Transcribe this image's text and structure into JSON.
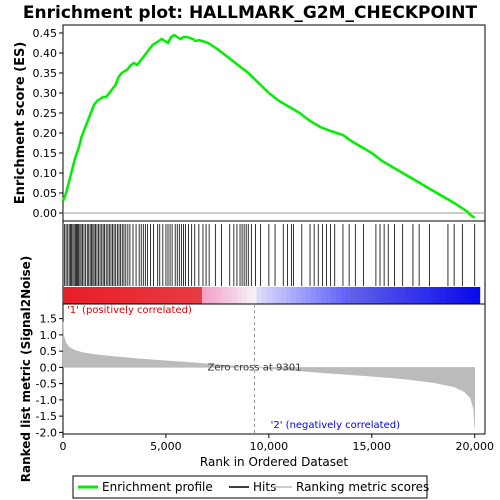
{
  "chart_data": {
    "type": "line",
    "title": "Enrichment plot: HALLMARK_G2M_CHECKPOINT",
    "xlabel": "Rank in Ordered Dataset",
    "xlim": [
      0,
      20500
    ],
    "x_ticks": [
      "0",
      "5,000",
      "10,000",
      "15,000",
      "20,000"
    ],
    "x_tick_values": [
      0,
      5000,
      10000,
      15000,
      20000
    ],
    "es_panel": {
      "ylabel": "Enrichment score (ES)",
      "ylim": [
        -0.02,
        0.47
      ],
      "y_ticks": [
        "0.00",
        "0.05",
        "0.10",
        "0.15",
        "0.20",
        "0.25",
        "0.30",
        "0.35",
        "0.40",
        "0.45"
      ],
      "y_tick_values": [
        0,
        0.05,
        0.1,
        0.15,
        0.2,
        0.25,
        0.3,
        0.35,
        0.4,
        0.45
      ],
      "color": "#00ee00",
      "series_x": [
        0,
        150,
        300,
        450,
        600,
        750,
        900,
        1050,
        1200,
        1350,
        1500,
        1650,
        1800,
        1950,
        2100,
        2250,
        2400,
        2550,
        2700,
        2850,
        3000,
        3150,
        3300,
        3450,
        3600,
        3750,
        3900,
        4050,
        4200,
        4350,
        4500,
        4650,
        4800,
        4950,
        5100,
        5250,
        5400,
        5550,
        5700,
        5850,
        6000,
        6150,
        6300,
        6450,
        6600,
        6750,
        6900,
        7050,
        7200,
        7500,
        8000,
        8500,
        9000,
        9500,
        10000,
        10500,
        11000,
        11500,
        12000,
        12500,
        13000,
        13300,
        13600,
        14000,
        14500,
        15000,
        15500,
        16000,
        16500,
        17000,
        17500,
        18000,
        18500,
        19000,
        19300,
        19600,
        19800,
        20000
      ],
      "series_y": [
        0.03,
        0.05,
        0.08,
        0.11,
        0.14,
        0.16,
        0.19,
        0.21,
        0.23,
        0.25,
        0.27,
        0.28,
        0.285,
        0.29,
        0.29,
        0.3,
        0.31,
        0.32,
        0.34,
        0.35,
        0.355,
        0.36,
        0.37,
        0.375,
        0.37,
        0.38,
        0.39,
        0.4,
        0.41,
        0.42,
        0.425,
        0.43,
        0.435,
        0.43,
        0.425,
        0.44,
        0.445,
        0.44,
        0.435,
        0.44,
        0.44,
        0.438,
        0.435,
        0.43,
        0.432,
        0.43,
        0.428,
        0.425,
        0.42,
        0.41,
        0.39,
        0.37,
        0.35,
        0.325,
        0.3,
        0.28,
        0.265,
        0.25,
        0.23,
        0.215,
        0.205,
        0.2,
        0.195,
        0.18,
        0.165,
        0.15,
        0.13,
        0.115,
        0.1,
        0.085,
        0.07,
        0.055,
        0.04,
        0.025,
        0.015,
        0.005,
        -0.005,
        -0.012
      ]
    },
    "hits": [
      80,
      150,
      230,
      300,
      360,
      420,
      480,
      540,
      600,
      650,
      700,
      760,
      820,
      880,
      950,
      1020,
      1100,
      1180,
      1250,
      1320,
      1390,
      1450,
      1510,
      1580,
      1650,
      1720,
      1800,
      1880,
      1950,
      2020,
      2100,
      2180,
      2250,
      2330,
      2400,
      2480,
      2560,
      2640,
      2720,
      2800,
      2880,
      2960,
      3050,
      3150,
      3250,
      3400,
      3550,
      3700,
      3800,
      3900,
      4000,
      4100,
      4250,
      4400,
      4600,
      4700,
      4850,
      5000,
      5100,
      5200,
      5300,
      5450,
      5550,
      5650,
      5750,
      5850,
      5950,
      6100,
      6250,
      6400,
      6600,
      6800,
      6950,
      7100,
      7400,
      7700,
      8100,
      8300,
      8450,
      8600,
      8700,
      8800,
      8900,
      9000,
      9150,
      9350,
      9600,
      10000,
      10300,
      10700,
      10900,
      11100,
      11200,
      11600,
      12000,
      12200,
      12400,
      12600,
      12800,
      13000,
      13200,
      13600,
      13900,
      14200,
      14600,
      15200,
      15400,
      15600,
      15800,
      16100,
      16500,
      17000,
      17300,
      17800,
      18700,
      19000,
      19400,
      20000
    ],
    "ranked_metric": {
      "ylabel": "Ranked list metric (Signal2Noise)",
      "ylim": [
        -2.05,
        1.95
      ],
      "y_ticks": [
        "-2.0",
        "-1.5",
        "-1.0",
        "-0.5",
        "0.0",
        "0.5",
        "1.0",
        "1.5"
      ],
      "y_tick_values": [
        -2,
        -1.5,
        -1,
        -0.5,
        0,
        0.5,
        1,
        1.5
      ],
      "profile_x": [
        0,
        50,
        150,
        300,
        600,
        1000,
        1500,
        2500,
        4000,
        6000,
        8000,
        9301,
        10500,
        12500,
        14500,
        16500,
        18000,
        19000,
        19500,
        19800,
        19950,
        20000
      ],
      "profile_y": [
        1.4,
        0.95,
        0.75,
        0.62,
        0.52,
        0.45,
        0.4,
        0.33,
        0.25,
        0.16,
        0.06,
        0.0,
        -0.06,
        -0.16,
        -0.25,
        -0.35,
        -0.47,
        -0.6,
        -0.75,
        -0.95,
        -1.3,
        -1.85
      ],
      "zero_cross_label": "Zero cross at 9301",
      "zero_cross": 9301,
      "pos_label": "'1' (positively correlated)",
      "neg_label": "'2' (negatively correlated)",
      "pos_color": "#dd0000",
      "neg_color": "#0000dd"
    },
    "legend": {
      "placement": "bottom",
      "entries": [
        {
          "label": "Enrichment profile",
          "color": "#00ee00"
        },
        {
          "label": "Hits",
          "color": "#000000"
        },
        {
          "label": "Ranking metric scores",
          "color": "#bbbbbb"
        }
      ]
    }
  }
}
